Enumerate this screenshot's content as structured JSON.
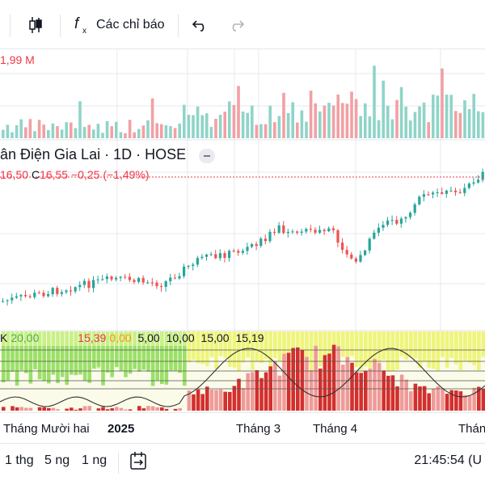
{
  "toolbar": {
    "indicators_label": "Các chỉ báo"
  },
  "volume": {
    "label": "1,99 M"
  },
  "legend": {
    "title": "ân Điện Gia Lai · 1D · HOSE",
    "ohlc_partial": "16,50",
    "close_key": "C",
    "close_value": "16,55",
    "change": "−0,25 (−1,49%)"
  },
  "indicator": {
    "label_prefix": "K",
    "values": [
      "20,00",
      "15,39",
      "0,00",
      "5,00",
      "10,00",
      "15,00",
      "15,19"
    ]
  },
  "time_axis": {
    "labels": [
      "Tháng Mười hai",
      "2025",
      "Tháng 3",
      "Tháng 4",
      "Thán"
    ]
  },
  "bottom_bar": {
    "ranges": [
      "1 thg",
      "5 ng",
      "1 ng"
    ],
    "clock": "21:45:54 (U"
  },
  "colors": {
    "up": "#26a69a",
    "down": "#ef5350",
    "vol_up": "#8fd4c8",
    "vol_down": "#f2a0a4",
    "grid": "#e6e8ef"
  },
  "icons": {
    "candles": "candlestick-icon",
    "fx": "function-icon",
    "undo": "undo-icon",
    "redo": "redo-icon",
    "replay": "calendar-replay-icon"
  }
}
